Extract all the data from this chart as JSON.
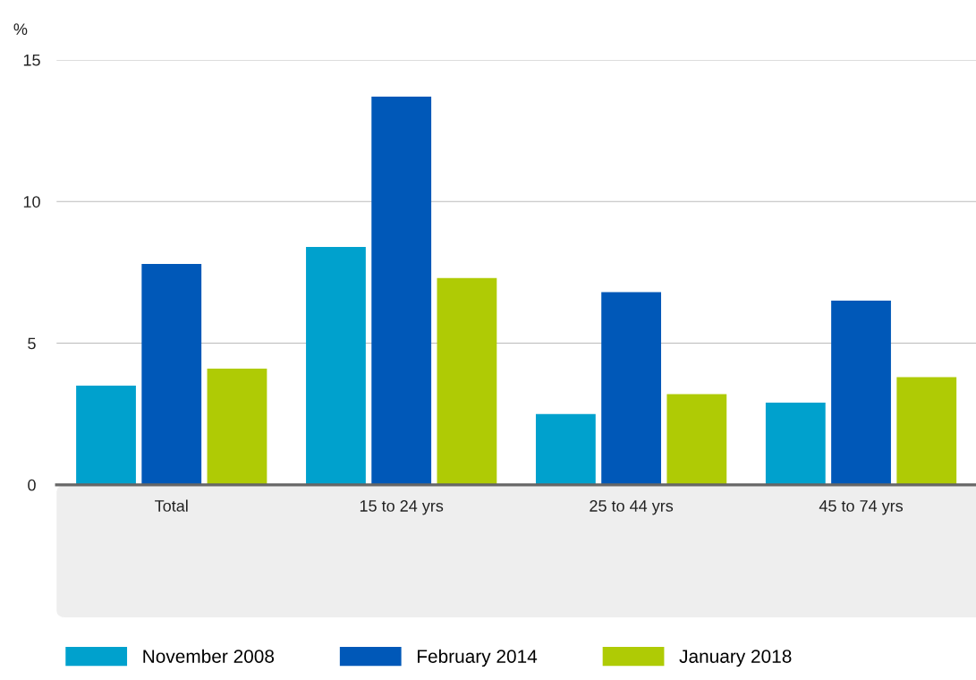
{
  "chart_data": {
    "type": "bar",
    "ylabel": "%",
    "categories": [
      "Total",
      "15 to 24 yrs",
      "25 to 44 yrs",
      "45 to 74 yrs"
    ],
    "series": [
      {
        "name": "November 2008",
        "color": "#00a1cd",
        "values": [
          3.5,
          8.4,
          2.5,
          2.9
        ]
      },
      {
        "name": "February 2014",
        "color": "#0058b8",
        "values": [
          7.8,
          13.7,
          6.8,
          6.5
        ]
      },
      {
        "name": "January 2018",
        "color": "#afcb05",
        "values": [
          4.1,
          7.3,
          3.2,
          3.8
        ]
      }
    ],
    "ylim": [
      0,
      15
    ],
    "yticks": [
      0,
      5,
      10,
      15
    ],
    "grid": "y",
    "legend": "bottom"
  }
}
